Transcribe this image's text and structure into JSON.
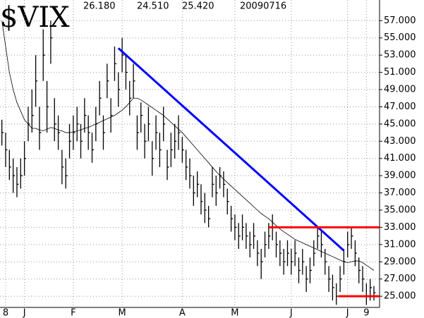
{
  "chart_data": {
    "type": "ohlc",
    "title": "$VIX",
    "stats": [
      "26.180",
      "24.510",
      "25.420",
      "20090716"
    ],
    "xlim": [
      -0.5,
      100.5
    ],
    "xticks": [
      {
        "value": 1,
        "label": "8"
      },
      {
        "value": 6,
        "label": "J"
      },
      {
        "value": 19,
        "label": "F"
      },
      {
        "value": 32,
        "label": "M"
      },
      {
        "value": 48,
        "label": "A"
      },
      {
        "value": 62,
        "label": "M"
      },
      {
        "value": 77,
        "label": "J"
      },
      {
        "value": 92,
        "label": "J"
      },
      {
        "value": 97,
        "label": "9"
      }
    ],
    "ylim": [
      23.7,
      59.4
    ],
    "yticks": [
      {
        "value": 25,
        "label": "25.000"
      },
      {
        "value": 27,
        "label": "27.000"
      },
      {
        "value": 29,
        "label": "29.000"
      },
      {
        "value": 31,
        "label": "31.000"
      },
      {
        "value": 33,
        "label": "33.000"
      },
      {
        "value": 35,
        "label": "35.000"
      },
      {
        "value": 37,
        "label": "37.000"
      },
      {
        "value": 39,
        "label": "39.000"
      },
      {
        "value": 41,
        "label": "41.000"
      },
      {
        "value": 43,
        "label": "43.000"
      },
      {
        "value": 45,
        "label": "45.000"
      },
      {
        "value": 47,
        "label": "47.000"
      },
      {
        "value": 49,
        "label": "49.000"
      },
      {
        "value": 51,
        "label": "51.000"
      },
      {
        "value": 53,
        "label": "53.000"
      },
      {
        "value": 55,
        "label": "55.000"
      },
      {
        "value": 57,
        "label": "57.000"
      }
    ],
    "grid": true,
    "color": "#000000",
    "high": [
      45.5,
      44,
      42,
      41,
      40,
      41,
      43,
      47,
      49,
      53,
      47,
      56,
      50,
      57,
      48,
      46,
      42,
      41,
      45,
      46,
      47,
      45,
      48,
      46,
      44,
      47,
      50,
      46,
      52,
      48,
      54,
      51,
      55,
      53,
      50,
      52,
      46,
      47.5,
      45,
      47,
      43,
      46,
      44,
      47,
      42,
      44,
      45,
      46,
      43.5,
      42,
      41,
      39,
      39.5,
      38,
      37,
      35.5,
      40,
      39,
      40,
      39.5,
      37.5,
      35.5,
      34.5,
      33.5,
      34.5,
      33.5,
      32.5,
      33.5,
      31.5,
      30.5,
      32.5,
      33.5,
      34.5,
      32.5,
      31.5,
      30.5,
      31.5,
      30.5,
      31.5,
      29.5,
      30.5,
      28.5,
      29.5,
      31.5,
      33,
      32.5,
      30.5,
      28.5,
      27.5,
      26.5,
      28.5,
      30.5,
      32.5,
      33,
      31.5,
      29.5,
      28.5,
      26.5,
      27,
      26.18
    ],
    "low": [
      42.5,
      40,
      38.5,
      37,
      36.5,
      37.5,
      39,
      43,
      44,
      47,
      42,
      50,
      44,
      52,
      43,
      42,
      38,
      37.5,
      41,
      42,
      43,
      41,
      44,
      42,
      40.5,
      43,
      46,
      42,
      48,
      44,
      50,
      47,
      51,
      49,
      46,
      48,
      42,
      44,
      41,
      43,
      39,
      42,
      40,
      43,
      38.5,
      40,
      41,
      42,
      40.5,
      38.5,
      37.5,
      35.5,
      36.5,
      34.5,
      33.5,
      33,
      36.5,
      35.5,
      37.5,
      36.5,
      34.5,
      32.5,
      31.5,
      30.5,
      31.5,
      30.5,
      29.5,
      30.5,
      28.5,
      27,
      29.5,
      30.5,
      31.5,
      29.5,
      28.5,
      27.5,
      28.5,
      27.5,
      28.5,
      26.5,
      27.5,
      25.5,
      26.5,
      28.5,
      30.5,
      29.5,
      27.5,
      25.5,
      24.5,
      24,
      25.5,
      27.5,
      29.5,
      30.5,
      28.5,
      26.5,
      25.5,
      24,
      24.5,
      24.51
    ],
    "close": [
      44,
      42,
      40,
      39,
      38,
      39,
      41,
      45,
      46,
      50,
      44,
      53,
      47,
      55,
      45,
      44,
      40,
      39,
      43,
      44,
      45,
      43,
      46,
      44,
      42,
      45,
      48,
      44,
      50,
      46,
      52,
      49,
      53,
      51,
      48,
      50,
      44,
      46,
      43,
      45,
      41,
      44,
      42,
      45,
      40,
      42,
      43,
      44,
      42,
      40,
      39,
      37,
      38,
      36,
      35,
      34,
      38,
      37,
      39,
      38,
      36,
      34,
      33,
      32,
      33,
      32,
      31,
      32,
      30,
      29,
      31,
      32,
      33,
      31,
      30,
      29,
      30,
      29,
      30,
      28,
      29,
      27,
      28,
      30,
      32,
      31,
      29,
      27,
      26,
      25,
      27,
      29,
      31,
      32,
      30,
      28,
      27,
      25,
      26,
      25.42
    ],
    "ma": {
      "color": "#000000",
      "values": [
        57,
        54,
        51,
        49,
        47.5,
        46.5,
        45.5,
        45,
        44.5,
        44.5,
        44.3,
        44.2,
        44.4,
        44.6,
        44.5,
        44.3,
        44.2,
        44,
        44,
        44.1,
        44.2,
        44.3,
        44.5,
        44.6,
        44.8,
        45,
        45.2,
        45.4,
        45.6,
        45.8,
        46,
        46.3,
        46.6,
        47,
        47.5,
        48,
        48,
        47.8,
        47.5,
        47.2,
        46.9,
        46.6,
        46.3,
        46,
        45.6,
        45.2,
        44.8,
        44.4,
        44,
        43.5,
        43,
        42.5,
        42,
        41.5,
        41,
        40.5,
        40,
        39.5,
        39,
        38.6,
        38.2,
        37.8,
        37.4,
        37,
        36.6,
        36.2,
        35.8,
        35.4,
        35,
        34.6,
        34.3,
        34,
        33.6,
        33.2,
        32.8,
        32.5,
        32.2,
        31.9,
        31.6,
        31.4,
        31.2,
        31,
        30.8,
        30.6,
        30.4,
        30.2,
        30,
        29.8,
        29.6,
        29.4,
        29.2,
        29,
        28.9,
        29,
        29.1,
        29.1,
        28.9,
        28.6,
        28.3,
        28
      ]
    },
    "trendlines": [
      {
        "color": "#0000ff",
        "x": [
          31,
          91
        ],
        "y": [
          53.8,
          30.3
        ]
      },
      {
        "color": "#ff0000",
        "x": [
          71,
          100.5
        ],
        "y": [
          33,
          33
        ]
      },
      {
        "color": "#ff0000",
        "x": [
          89.5,
          100.5
        ],
        "y": [
          25,
          25
        ]
      }
    ]
  }
}
